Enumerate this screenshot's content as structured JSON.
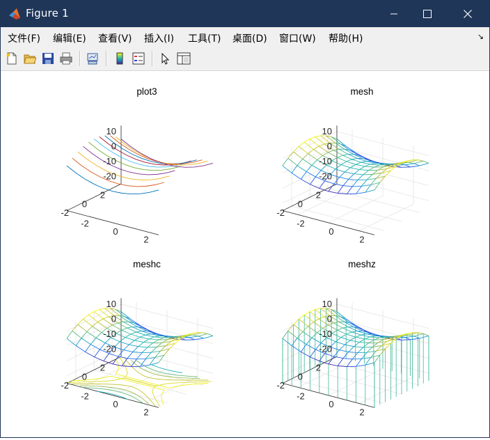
{
  "window": {
    "title": "Figure 1"
  },
  "menu": [
    {
      "label": "文件(F)"
    },
    {
      "label": "编辑(E)"
    },
    {
      "label": "查看(V)"
    },
    {
      "label": "插入(I)"
    },
    {
      "label": "工具(T)"
    },
    {
      "label": "桌面(D)"
    },
    {
      "label": "窗口(W)"
    },
    {
      "label": "帮助(H)"
    }
  ],
  "toolbar": [
    "new-figure-icon",
    "open-file-icon",
    "save-icon",
    "print-icon",
    "link-plot-icon",
    "colorbar-icon",
    "legend-icon",
    "edit-plot-arrow-icon",
    "property-inspector-icon"
  ],
  "colors": {
    "titlebar": "#1f3658",
    "parula_low": "#3e26a8",
    "parula_mid": "#20b7b1",
    "parula_high": "#f9fb0e"
  },
  "chart_data": [
    {
      "type": "line3d",
      "title": "plot3",
      "x_ticks": [
        "-2",
        "0",
        "2"
      ],
      "y_ticks": [
        "-2",
        "0",
        "2"
      ],
      "z_ticks": [
        "10",
        "0",
        "-10",
        "-20"
      ],
      "x": [
        -3,
        -2.4,
        -1.8,
        -1.2,
        -0.6,
        0,
        0.6,
        1.2,
        1.8,
        2.4,
        3
      ],
      "y": [
        -3,
        -2.4,
        -1.8,
        -1.2,
        -0.6,
        0,
        0.6,
        1.2,
        1.8,
        2.4,
        3
      ],
      "z_formula": "x^2 - y^2 + 5",
      "grid": false
    },
    {
      "type": "mesh",
      "title": "mesh",
      "x_ticks": [
        "-2",
        "0",
        "2"
      ],
      "y_ticks": [
        "-2",
        "0",
        "2"
      ],
      "z_ticks": [
        "10",
        "0",
        "-10",
        "-20"
      ],
      "x": [
        -3,
        -2.4,
        -1.8,
        -1.2,
        -0.6,
        0,
        0.6,
        1.2,
        1.8,
        2.4,
        3
      ],
      "y": [
        -3,
        -2.4,
        -1.8,
        -1.2,
        -0.6,
        0,
        0.6,
        1.2,
        1.8,
        2.4,
        3
      ],
      "z_formula": "x^2 - y^2 + 5",
      "grid": true
    },
    {
      "type": "meshc",
      "title": "meshc",
      "x_ticks": [
        "-2",
        "0",
        "2"
      ],
      "y_ticks": [
        "-2",
        "0",
        "2"
      ],
      "z_ticks": [
        "10",
        "0",
        "-10",
        "-20"
      ],
      "x": [
        -3,
        -2.4,
        -1.8,
        -1.2,
        -0.6,
        0,
        0.6,
        1.2,
        1.8,
        2.4,
        3
      ],
      "y": [
        -3,
        -2.4,
        -1.8,
        -1.2,
        -0.6,
        0,
        0.6,
        1.2,
        1.8,
        2.4,
        3
      ],
      "z_formula": "x^2 - y^2 + 5",
      "contour_z": -25,
      "grid": true
    },
    {
      "type": "meshz",
      "title": "meshz",
      "x_ticks": [
        "-2",
        "0",
        "2"
      ],
      "y_ticks": [
        "-2",
        "0",
        "2"
      ],
      "z_ticks": [
        "10",
        "0",
        "-10",
        "-20"
      ],
      "x": [
        -3,
        -2.4,
        -1.8,
        -1.2,
        -0.6,
        0,
        0.6,
        1.2,
        1.8,
        2.4,
        3
      ],
      "y": [
        -3,
        -2.4,
        -1.8,
        -1.2,
        -0.6,
        0,
        0.6,
        1.2,
        1.8,
        2.4,
        3
      ],
      "z_formula": "x^2 - y^2 + 5",
      "curtain_z": -25,
      "grid": true
    }
  ]
}
